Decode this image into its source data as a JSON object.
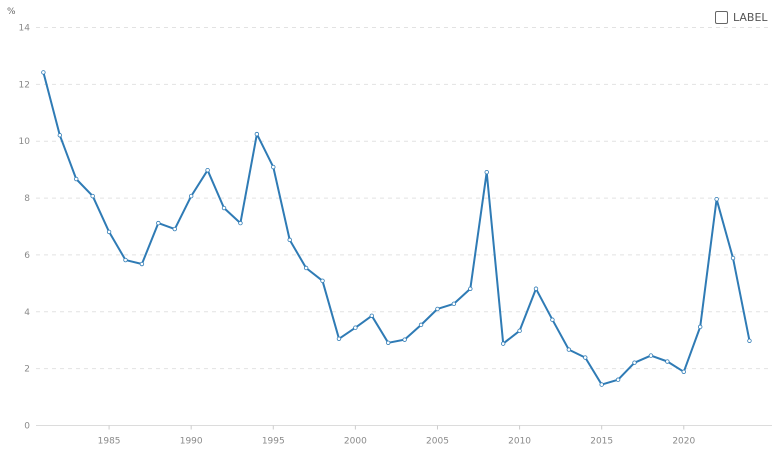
{
  "chart_data": {
    "type": "line",
    "title": "",
    "xlabel": "",
    "ylabel": "%",
    "xlim": [
      1981,
      2024
    ],
    "ylim": [
      0,
      14
    ],
    "yticks": [
      0,
      2,
      4,
      6,
      8,
      10,
      12,
      14
    ],
    "xticks": [
      1985,
      1990,
      1995,
      2000,
      2005,
      2010,
      2015,
      2020
    ],
    "grid": true,
    "legend": {
      "label": "LABEL",
      "position": "top-right",
      "checked": false
    },
    "color": "#2f7bb5",
    "x": [
      1981,
      1982,
      1983,
      1984,
      1985,
      1986,
      1987,
      1988,
      1989,
      1990,
      1991,
      1992,
      1993,
      1994,
      1995,
      1996,
      1997,
      1998,
      1999,
      2000,
      2001,
      2002,
      2003,
      2004,
      2005,
      2006,
      2007,
      2008,
      2009,
      2010,
      2011,
      2012,
      2013,
      2014,
      2015,
      2016,
      2017,
      2018,
      2019,
      2020,
      2021,
      2022,
      2023,
      2024
    ],
    "y": [
      12.42,
      10.21,
      8.67,
      8.07,
      6.81,
      5.82,
      5.68,
      7.12,
      6.91,
      8.07,
      8.98,
      7.65,
      7.12,
      10.25,
      9.09,
      6.53,
      5.54,
      5.09,
      3.05,
      3.44,
      3.86,
      2.91,
      3.02,
      3.54,
      4.1,
      4.28,
      4.81,
      8.91,
      2.88,
      3.33,
      4.81,
      3.72,
      2.67,
      2.39,
      1.44,
      1.61,
      2.21,
      2.46,
      2.25,
      1.89,
      3.47,
      7.96,
      5.89,
      2.98
    ]
  }
}
